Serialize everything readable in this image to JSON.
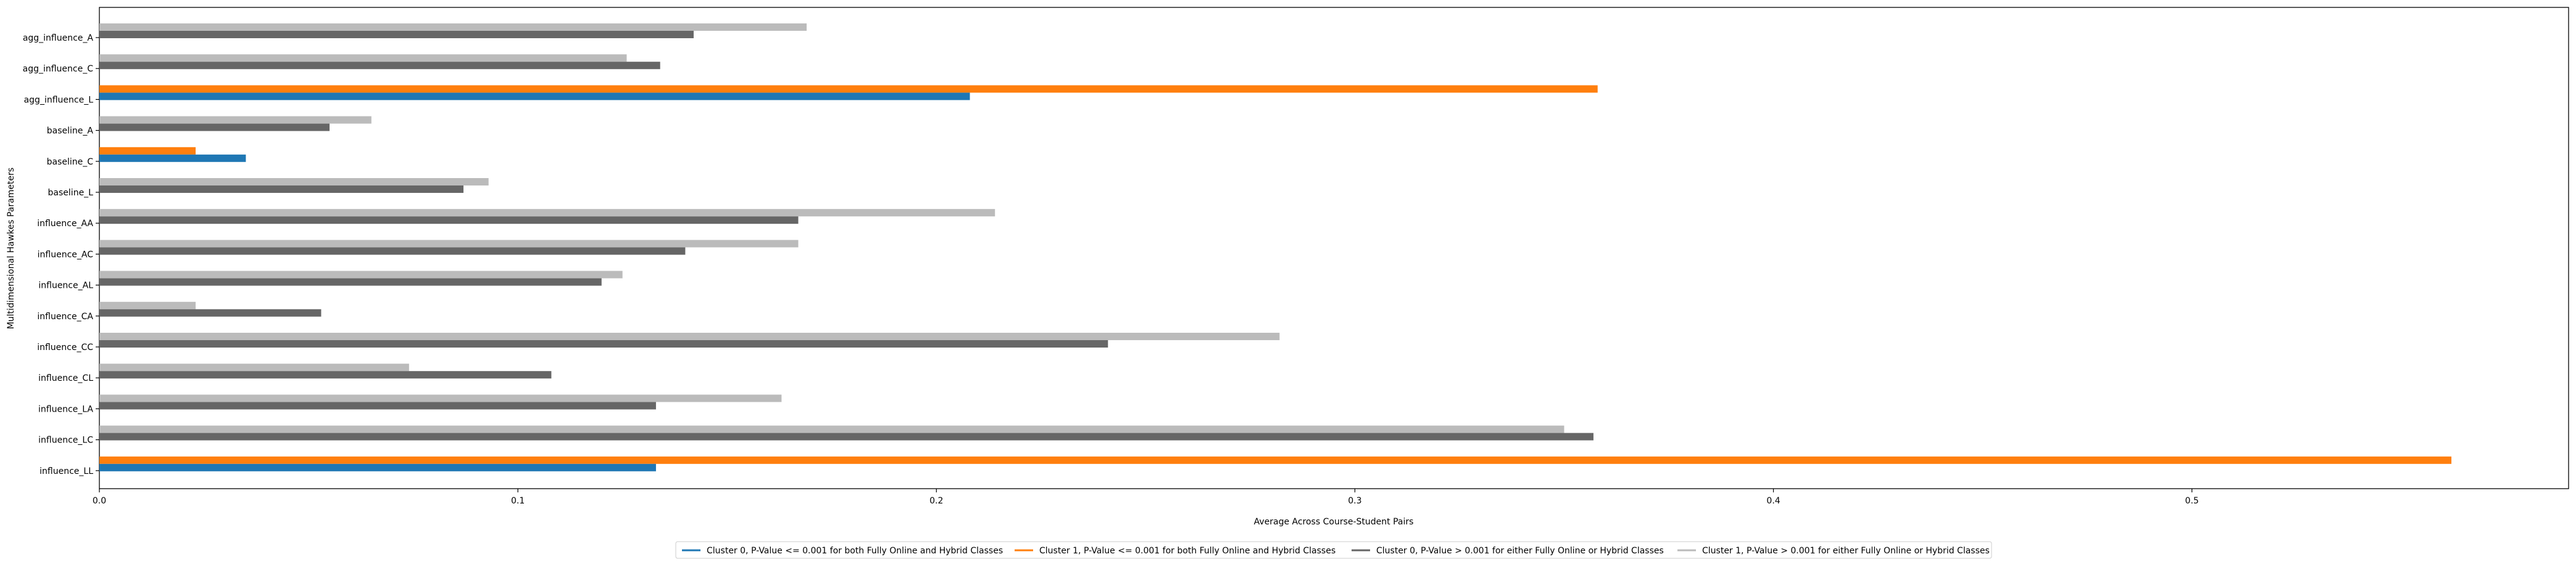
{
  "chart_data": {
    "type": "bar",
    "orientation": "horizontal",
    "xlabel": "Average Across Course-Student Pairs",
    "ylabel": "Multidimensional Hawkes Parameters",
    "xlim": [
      0.0,
      0.59
    ],
    "xticks": [
      0.0,
      0.1,
      0.2,
      0.3,
      0.4,
      0.5
    ],
    "xtick_labels": [
      "0.0",
      "0.1",
      "0.2",
      "0.3",
      "0.4",
      "0.5"
    ],
    "grid": false,
    "legend_position": "bottom-center",
    "categories": [
      "agg_influence_A",
      "agg_influence_C",
      "agg_influence_L",
      "baseline_A",
      "baseline_C",
      "baseline_L",
      "influence_AA",
      "influence_AC",
      "influence_AL",
      "influence_CA",
      "influence_CC",
      "influence_CL",
      "influence_LA",
      "influence_LC",
      "influence_LL"
    ],
    "series": [
      {
        "name": "Cluster 0, P-Value <= 0.001 for both Fully Online and Hybrid Classes",
        "color": "#1f77b4",
        "values": [
          null,
          null,
          0.208,
          null,
          0.035,
          null,
          null,
          null,
          null,
          null,
          null,
          null,
          null,
          null,
          0.133
        ]
      },
      {
        "name": "Cluster 1, P-Value <= 0.001 for both Fully Online and Hybrid Classes",
        "color": "#ff7f0e",
        "values": [
          null,
          null,
          0.358,
          null,
          0.023,
          null,
          null,
          null,
          null,
          null,
          null,
          null,
          null,
          null,
          0.562
        ]
      },
      {
        "name": "Cluster 0, P-Value > 0.001 for either Fully Online or Hybrid Classes",
        "color": "#666666",
        "values": [
          0.142,
          0.134,
          null,
          0.055,
          null,
          0.087,
          0.167,
          0.14,
          0.12,
          0.053,
          0.241,
          0.108,
          0.133,
          0.357,
          null
        ]
      },
      {
        "name": "Cluster 1, P-Value > 0.001 for either Fully Online or Hybrid Classes",
        "color": "#bbbbbb",
        "values": [
          0.169,
          0.126,
          null,
          0.065,
          null,
          0.093,
          0.214,
          0.167,
          0.125,
          0.023,
          0.282,
          0.074,
          0.163,
          0.35,
          null
        ]
      }
    ]
  }
}
